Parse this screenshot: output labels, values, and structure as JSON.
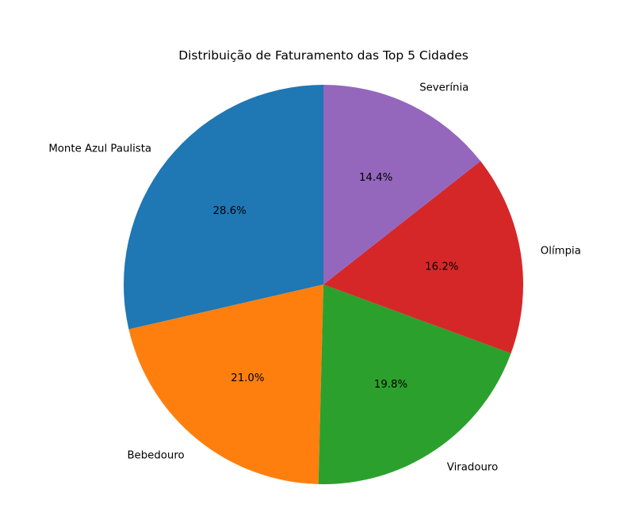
{
  "chart_data": {
    "type": "pie",
    "title": "Distribuição de Faturamento das Top 5 Cidades",
    "start_angle_deg": 90,
    "direction": "counterclockwise",
    "slices": [
      {
        "label": "Monte Azul Paulista",
        "percent": 28.6,
        "pct_text": "28.6%",
        "color": "#1f77b4"
      },
      {
        "label": "Bebedouro",
        "percent": 21.0,
        "pct_text": "21.0%",
        "color": "#ff7f0e"
      },
      {
        "label": "Viradouro",
        "percent": 19.8,
        "pct_text": "19.8%",
        "color": "#2ca02c"
      },
      {
        "label": "Olímpia",
        "percent": 16.2,
        "pct_text": "16.2%",
        "color": "#d62728"
      },
      {
        "label": "Severínia",
        "percent": 14.4,
        "pct_text": "14.4%",
        "color": "#9467bd"
      }
    ]
  }
}
